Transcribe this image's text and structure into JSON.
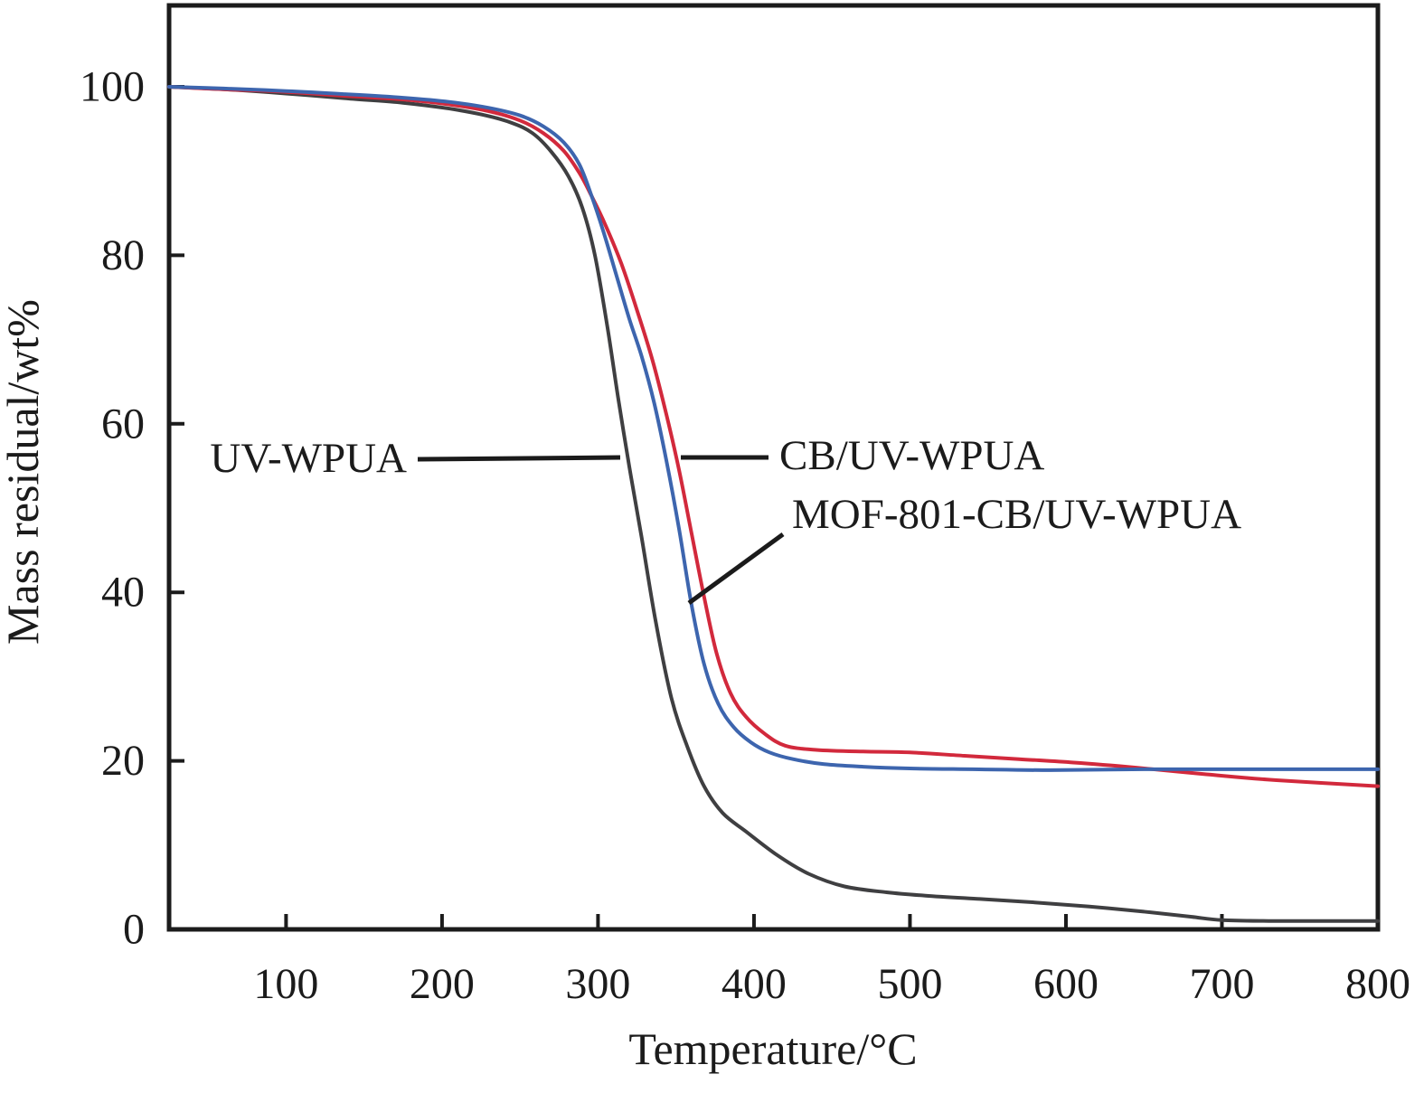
{
  "figure": {
    "background": "#ffffff",
    "frame_color": "#1b1b1b",
    "text_color": "#1b1b1b"
  },
  "chart_data": {
    "type": "line",
    "title": "",
    "xlabel": "Temperature/°C",
    "ylabel": "Mass residual/wt%",
    "xlim": [
      25,
      800
    ],
    "ylim": [
      0,
      109.7
    ],
    "x_ticks": [
      100,
      200,
      300,
      400,
      500,
      600,
      700,
      800
    ],
    "y_ticks": [
      0,
      20,
      40,
      60,
      80,
      100
    ],
    "grid": false,
    "legend_position": "inline-annotations",
    "series": [
      {
        "name": "UV-WPUA",
        "color": "#3f3f41",
        "points": [
          [
            25,
            100
          ],
          [
            60,
            99.7
          ],
          [
            100,
            99.2
          ],
          [
            140,
            98.6
          ],
          [
            175,
            98.1
          ],
          [
            205,
            97.4
          ],
          [
            228,
            96.6
          ],
          [
            245,
            95.7
          ],
          [
            258,
            94.5
          ],
          [
            270,
            92.3
          ],
          [
            281,
            89.4
          ],
          [
            290,
            85.6
          ],
          [
            298,
            80.0
          ],
          [
            306,
            71.5
          ],
          [
            313,
            63.0
          ],
          [
            320,
            55.0
          ],
          [
            328,
            46.5
          ],
          [
            337,
            36.5
          ],
          [
            347,
            27.5
          ],
          [
            357,
            21.8
          ],
          [
            368,
            17.0
          ],
          [
            380,
            13.8
          ],
          [
            395,
            11.6
          ],
          [
            415,
            8.8
          ],
          [
            435,
            6.6
          ],
          [
            458,
            5.1
          ],
          [
            485,
            4.4
          ],
          [
            510,
            4.0
          ],
          [
            545,
            3.6
          ],
          [
            580,
            3.2
          ],
          [
            615,
            2.7
          ],
          [
            650,
            2.1
          ],
          [
            680,
            1.5
          ],
          [
            700,
            1.1
          ],
          [
            730,
            1.0
          ],
          [
            770,
            1.0
          ],
          [
            800,
            1.0
          ]
        ]
      },
      {
        "name": "CB/UV-WPUA",
        "color": "#d2293c",
        "points": [
          [
            25,
            100
          ],
          [
            60,
            99.7
          ],
          [
            100,
            99.4
          ],
          [
            140,
            98.9
          ],
          [
            175,
            98.5
          ],
          [
            205,
            97.9
          ],
          [
            230,
            97.1
          ],
          [
            250,
            96.0
          ],
          [
            265,
            94.5
          ],
          [
            278,
            92.4
          ],
          [
            288,
            89.8
          ],
          [
            296,
            87.0
          ],
          [
            305,
            83.5
          ],
          [
            315,
            79.0
          ],
          [
            325,
            73.5
          ],
          [
            335,
            67.5
          ],
          [
            344,
            61.0
          ],
          [
            352,
            54.5
          ],
          [
            360,
            47.0
          ],
          [
            368,
            39.5
          ],
          [
            376,
            32.8
          ],
          [
            385,
            28.0
          ],
          [
            395,
            25.2
          ],
          [
            407,
            23.2
          ],
          [
            420,
            21.8
          ],
          [
            440,
            21.3
          ],
          [
            470,
            21.1
          ],
          [
            500,
            21.0
          ],
          [
            535,
            20.6
          ],
          [
            570,
            20.2
          ],
          [
            605,
            19.8
          ],
          [
            645,
            19.2
          ],
          [
            690,
            18.4
          ],
          [
            735,
            17.7
          ],
          [
            800,
            17.0
          ]
        ]
      },
      {
        "name": "MOF-801-CB/UV-WPUA",
        "color": "#3d65ae",
        "points": [
          [
            25,
            100
          ],
          [
            60,
            99.8
          ],
          [
            100,
            99.5
          ],
          [
            140,
            99.1
          ],
          [
            175,
            98.7
          ],
          [
            205,
            98.2
          ],
          [
            230,
            97.5
          ],
          [
            250,
            96.6
          ],
          [
            265,
            95.3
          ],
          [
            278,
            93.4
          ],
          [
            288,
            90.8
          ],
          [
            296,
            87.0
          ],
          [
            304,
            82.5
          ],
          [
            312,
            77.5
          ],
          [
            320,
            72.5
          ],
          [
            328,
            68.0
          ],
          [
            336,
            62.5
          ],
          [
            344,
            55.5
          ],
          [
            352,
            47.5
          ],
          [
            360,
            38.5
          ],
          [
            368,
            31.5
          ],
          [
            377,
            26.8
          ],
          [
            387,
            24.0
          ],
          [
            398,
            22.2
          ],
          [
            410,
            21.0
          ],
          [
            425,
            20.2
          ],
          [
            445,
            19.6
          ],
          [
            470,
            19.3
          ],
          [
            500,
            19.1
          ],
          [
            540,
            19.0
          ],
          [
            590,
            18.9
          ],
          [
            650,
            19.0
          ],
          [
            720,
            19.0
          ],
          [
            800,
            19.0
          ]
        ]
      }
    ],
    "annotations": [
      {
        "label": "UV-WPUA",
        "series": "UV-WPUA"
      },
      {
        "label": "CB/UV-WPUA",
        "series": "CB/UV-WPUA"
      },
      {
        "label": "MOF-801-CB/UV-WPUA",
        "series": "MOF-801-CB/UV-WPUA"
      }
    ]
  }
}
